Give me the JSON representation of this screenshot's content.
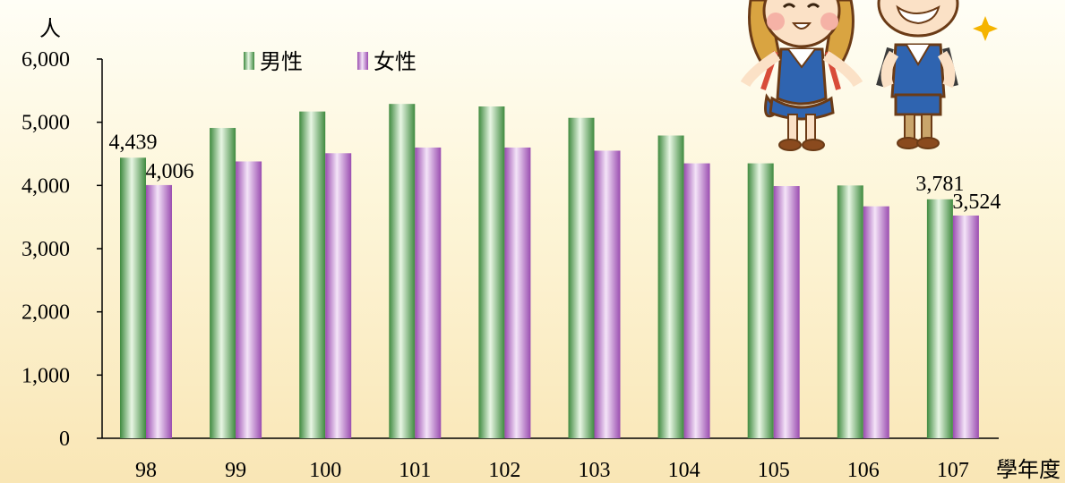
{
  "chart_data": {
    "type": "bar",
    "title": "",
    "ylabel": "人",
    "xlabel": "學年度",
    "ylim": [
      0,
      6000
    ],
    "yticks": [
      0,
      1000,
      2000,
      3000,
      4000,
      5000,
      6000
    ],
    "ytick_labels": [
      "0",
      "1,000",
      "2,000",
      "3,000",
      "4,000",
      "5,000",
      "6,000"
    ],
    "categories": [
      "98",
      "99",
      "100",
      "101",
      "102",
      "103",
      "104",
      "105",
      "106",
      "107"
    ],
    "series": [
      {
        "name": "男性",
        "color": "#5fa85f",
        "values": [
          4439,
          4910,
          5170,
          5290,
          5250,
          5070,
          4790,
          4350,
          4000,
          3781
        ]
      },
      {
        "name": "女性",
        "color": "#b86cc9",
        "values": [
          4006,
          4380,
          4510,
          4600,
          4600,
          4550,
          4350,
          3990,
          3670,
          3524
        ]
      }
    ],
    "data_labels": [
      {
        "series": 0,
        "index": 0,
        "text": "4,439"
      },
      {
        "series": 1,
        "index": 0,
        "text": "4,006"
      },
      {
        "series": 0,
        "index": 9,
        "text": "3,781"
      },
      {
        "series": 1,
        "index": 9,
        "text": "3,524"
      }
    ],
    "legend": "top-left",
    "grid": false
  },
  "decoration": {
    "illustration": "two-school-children-cartoon",
    "star_icon": "sparkle-star-icon"
  }
}
